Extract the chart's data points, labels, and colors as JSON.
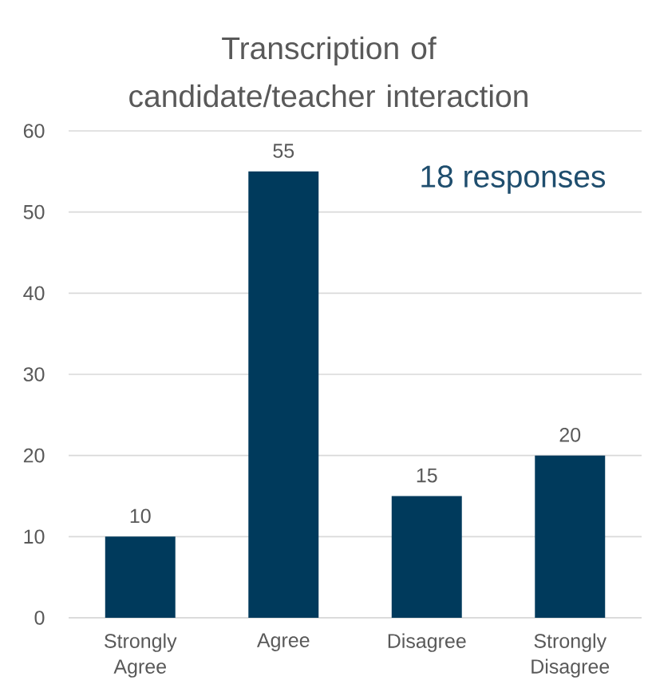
{
  "chart_data": {
    "type": "bar",
    "title": "Transcription of candidate/teacher interaction",
    "categories": [
      "Strongly Agree",
      "Agree",
      "Disagree",
      "Strongly Disagree"
    ],
    "values": [
      10,
      55,
      15,
      20
    ],
    "color": "#003a5c",
    "ylim": [
      0,
      60
    ],
    "yticks": [
      0,
      10,
      20,
      30,
      40,
      50,
      60
    ],
    "grid": "y",
    "data_labels": true,
    "annotations": [
      "18 responses"
    ]
  }
}
